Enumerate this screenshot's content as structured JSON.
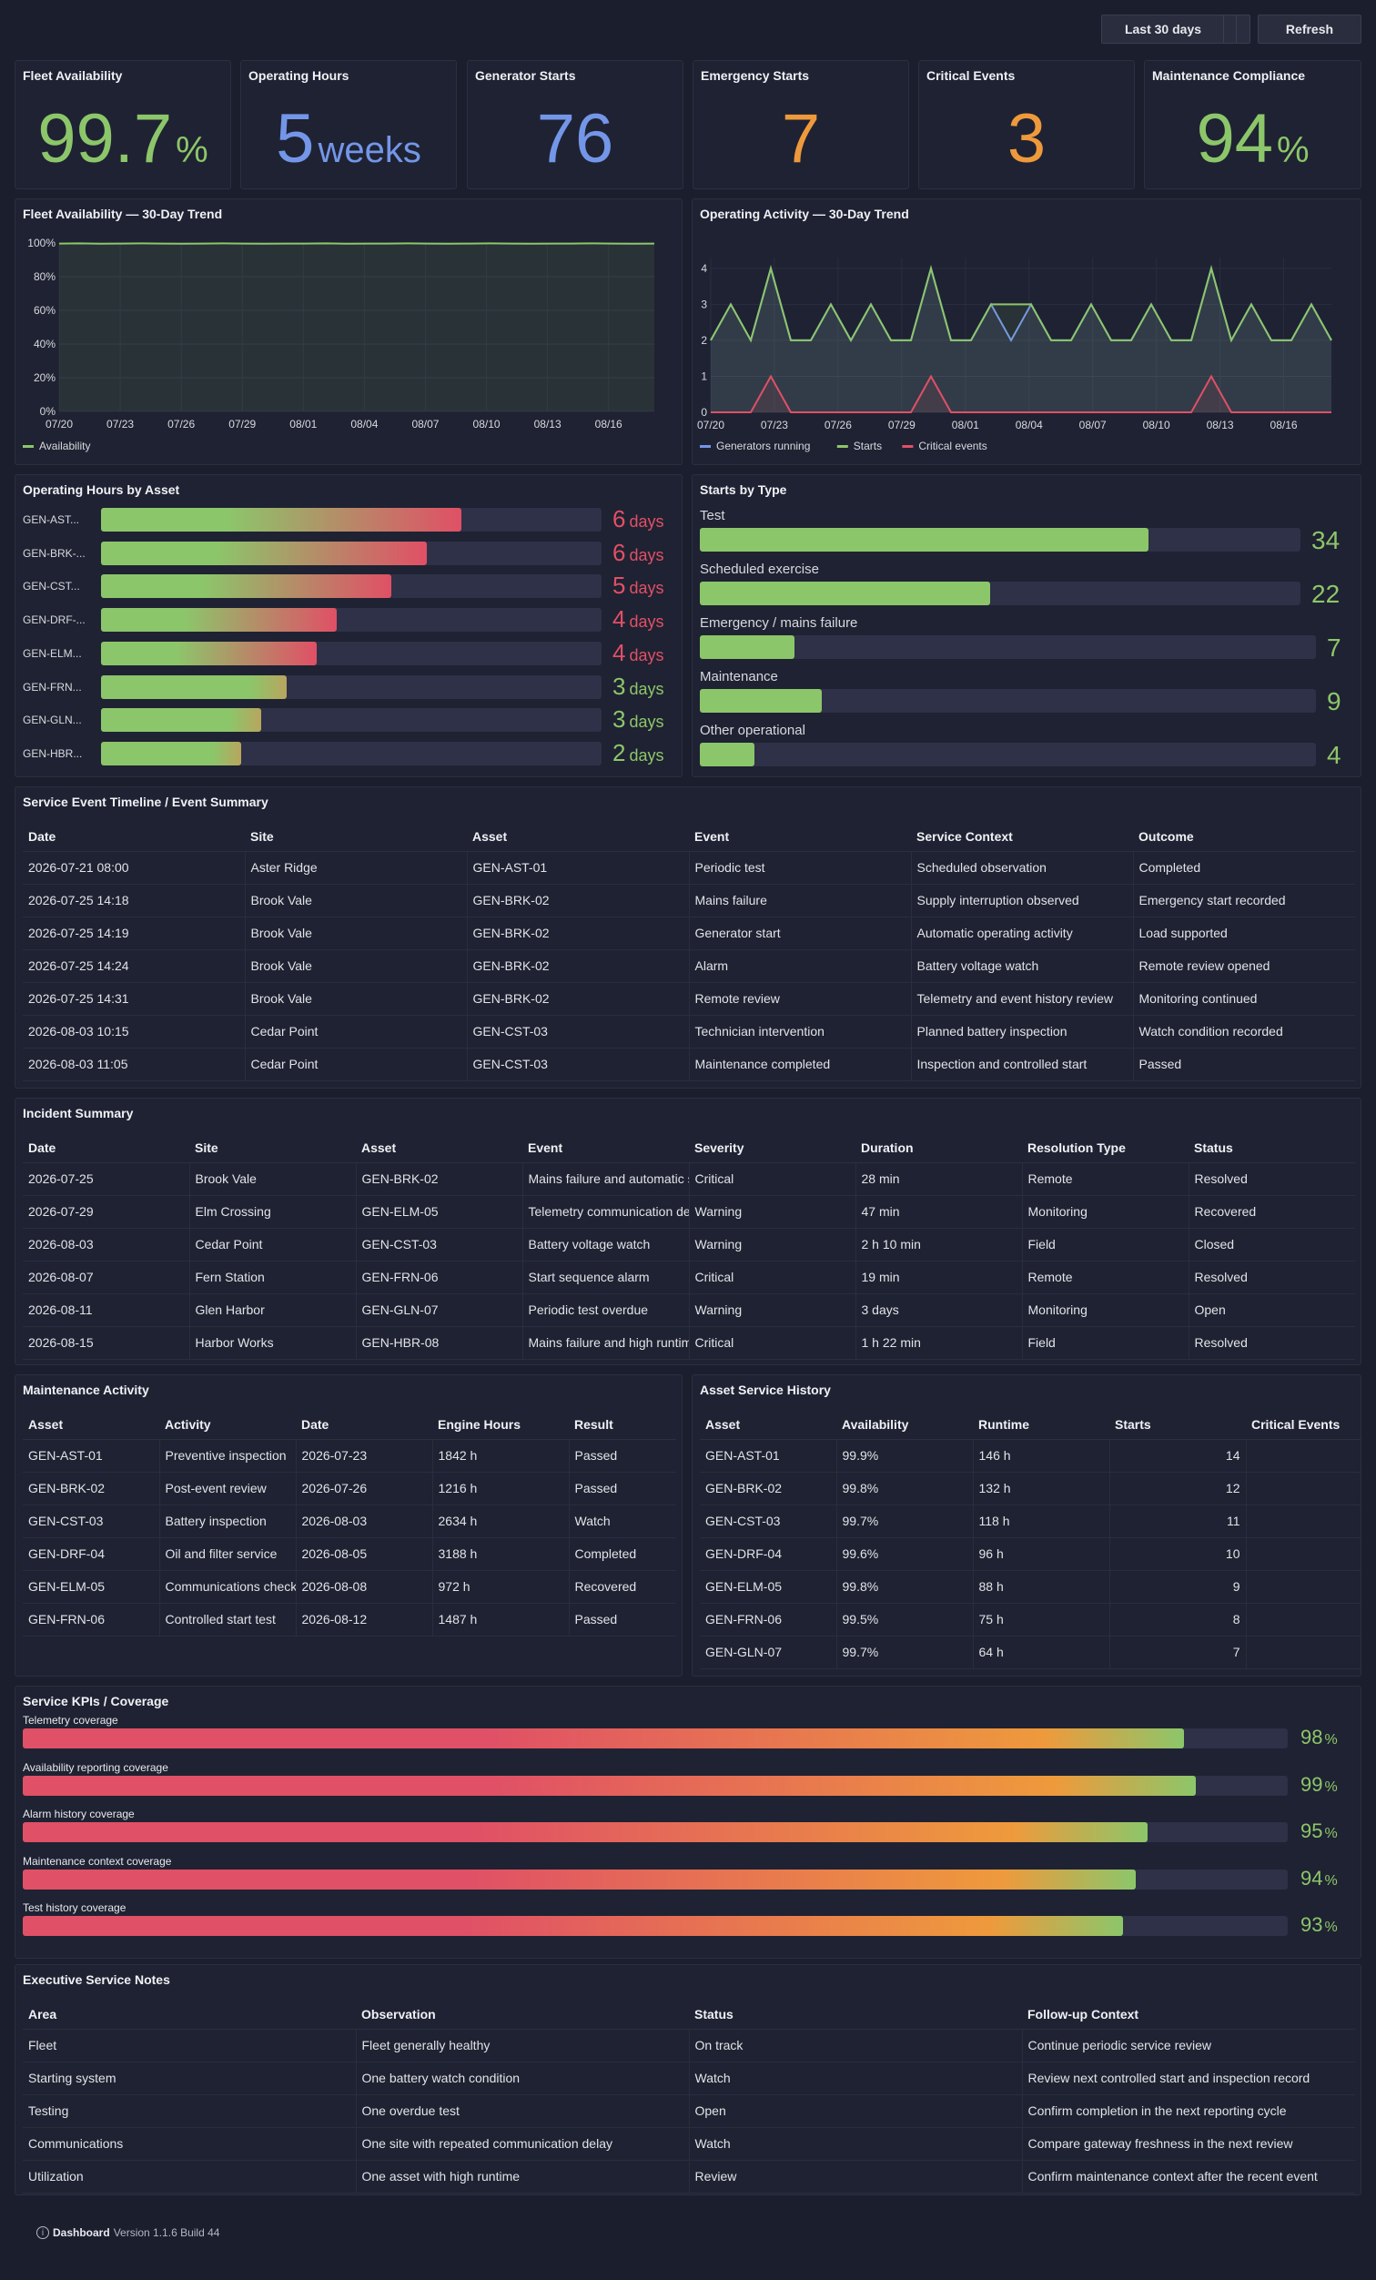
{
  "toolbar": {
    "range_label": "Last 30 days",
    "refresh_label": "Refresh"
  },
  "stats": [
    {
      "title": "Fleet Availability",
      "value": "99.7",
      "unit": "%",
      "color": "#8cc66a"
    },
    {
      "title": "Operating Hours",
      "value": "5",
      "unit": "weeks",
      "color": "#7396e8"
    },
    {
      "title": "Generator Starts",
      "value": "76",
      "unit": "",
      "color": "#7396e8"
    },
    {
      "title": "Emergency Starts",
      "value": "7",
      "unit": "",
      "color": "#ee9a3c"
    },
    {
      "title": "Critical Events",
      "value": "3",
      "unit": "",
      "color": "#ee9a3c"
    },
    {
      "title": "Maintenance Compliance",
      "value": "94",
      "unit": "%",
      "color": "#8cc66a"
    }
  ],
  "chart_data": [
    {
      "type": "area",
      "title": "Fleet Availability — 30-Day Trend",
      "x_ticks": [
        "07/20",
        "07/23",
        "07/26",
        "07/29",
        "08/01",
        "08/04",
        "08/07",
        "08/10",
        "08/13",
        "08/16"
      ],
      "y_ticks": [
        "0%",
        "20%",
        "40%",
        "60%",
        "80%",
        "100%"
      ],
      "ylim": [
        0,
        100
      ],
      "grid": true,
      "legend": "bottom-left",
      "series": [
        {
          "name": "Availability",
          "color": "#8cc66a",
          "values": [
            99.7,
            99.8,
            99.6,
            99.7,
            99.8,
            99.7,
            99.6,
            99.7,
            99.8,
            99.7,
            99.6,
            99.7,
            99.7,
            99.8,
            99.6,
            99.7,
            99.7,
            99.8,
            99.7,
            99.6,
            99.7,
            99.8,
            99.7,
            99.6,
            99.7,
            99.7,
            99.8,
            99.7,
            99.6,
            99.7
          ]
        }
      ]
    },
    {
      "type": "area",
      "title": "Operating Activity — 30-Day Trend",
      "x_ticks": [
        "07/20",
        "07/23",
        "07/26",
        "07/29",
        "08/01",
        "08/04",
        "08/07",
        "08/10",
        "08/13",
        "08/16"
      ],
      "y_ticks": [
        "0",
        "1",
        "2",
        "3",
        "4"
      ],
      "ylim": [
        0,
        4.3
      ],
      "grid": true,
      "legend": "bottom-left",
      "series": [
        {
          "name": "Generators running",
          "color": "#7396e8",
          "values": [
            2,
            3,
            2,
            4,
            2,
            2,
            3,
            2,
            3,
            2,
            2,
            4,
            2,
            2,
            3,
            2,
            3,
            2,
            2,
            3,
            2,
            2,
            3,
            2,
            2,
            4,
            2,
            3,
            2,
            2,
            3,
            2
          ]
        },
        {
          "name": "Starts",
          "color": "#8cc66a",
          "values": [
            2,
            3,
            2,
            4,
            2,
            2,
            3,
            2,
            3,
            2,
            2,
            4,
            2,
            2,
            3,
            3,
            3,
            2,
            2,
            3,
            2,
            2,
            3,
            2,
            2,
            4,
            2,
            3,
            2,
            2,
            3,
            2
          ]
        },
        {
          "name": "Critical events",
          "color": "#e05066",
          "values": [
            0,
            0,
            0,
            1,
            0,
            0,
            0,
            0,
            0,
            0,
            0,
            1,
            0,
            0,
            0,
            0,
            0,
            0,
            0,
            0,
            0,
            0,
            0,
            0,
            0,
            1,
            0,
            0,
            0,
            0,
            0,
            0
          ]
        }
      ]
    },
    {
      "type": "bar",
      "title": "Operating Hours by Asset",
      "categories": [
        "GEN-AST...",
        "GEN-BRK-...",
        "GEN-CST...",
        "GEN-DRF-...",
        "GEN-ELM...",
        "GEN-FRN...",
        "GEN-GLN...",
        "GEN-HBR..."
      ],
      "values": [
        6,
        6,
        5,
        4,
        4,
        3,
        3,
        2
      ],
      "unit": "days",
      "fill_fraction": [
        0.72,
        0.65,
        0.58,
        0.47,
        0.43,
        0.37,
        0.32,
        0.28
      ]
    },
    {
      "type": "bar",
      "title": "Starts by Type",
      "categories": [
        "Test",
        "Scheduled exercise",
        "Emergency / mains failure",
        "Maintenance",
        "Other operational"
      ],
      "values": [
        34,
        22,
        7,
        9,
        4
      ],
      "xlim": [
        0,
        45.5
      ]
    }
  ],
  "timeline": {
    "title": "Service Event Timeline / Event Summary",
    "columns": [
      "Date",
      "Site",
      "Asset",
      "Event",
      "Service Context",
      "Outcome"
    ],
    "rows": [
      [
        "2026-07-21 08:00",
        "Aster Ridge",
        "GEN-AST-01",
        "Periodic test",
        "Scheduled observation",
        "Completed"
      ],
      [
        "2026-07-25 14:18",
        "Brook Vale",
        "GEN-BRK-02",
        "Mains failure",
        "Supply interruption observed",
        "Emergency start recorded"
      ],
      [
        "2026-07-25 14:19",
        "Brook Vale",
        "GEN-BRK-02",
        "Generator start",
        "Automatic operating activity",
        "Load supported"
      ],
      [
        "2026-07-25 14:24",
        "Brook Vale",
        "GEN-BRK-02",
        "Alarm",
        "Battery voltage watch",
        "Remote review opened"
      ],
      [
        "2026-07-25 14:31",
        "Brook Vale",
        "GEN-BRK-02",
        "Remote review",
        "Telemetry and event history review",
        "Monitoring continued"
      ],
      [
        "2026-08-03 10:15",
        "Cedar Point",
        "GEN-CST-03",
        "Technician intervention",
        "Planned battery inspection",
        "Watch condition recorded"
      ],
      [
        "2026-08-03 11:05",
        "Cedar Point",
        "GEN-CST-03",
        "Maintenance completed",
        "Inspection and controlled start",
        "Passed"
      ]
    ]
  },
  "incidents": {
    "title": "Incident Summary",
    "columns": [
      "Date",
      "Site",
      "Asset",
      "Event",
      "Severity",
      "Duration",
      "Resolution Type",
      "Status"
    ],
    "rows": [
      [
        "2026-07-25",
        "Brook Vale",
        "GEN-BRK-02",
        "Mains failure and automatic start",
        "Critical",
        "28 min",
        "Remote",
        "Resolved"
      ],
      [
        "2026-07-29",
        "Elm Crossing",
        "GEN-ELM-05",
        "Telemetry communication delay",
        "Warning",
        "47 min",
        "Monitoring",
        "Recovered"
      ],
      [
        "2026-08-03",
        "Cedar Point",
        "GEN-CST-03",
        "Battery voltage watch",
        "Warning",
        "2 h 10 min",
        "Field",
        "Closed"
      ],
      [
        "2026-08-07",
        "Fern Station",
        "GEN-FRN-06",
        "Start sequence alarm",
        "Critical",
        "19 min",
        "Remote",
        "Resolved"
      ],
      [
        "2026-08-11",
        "Glen Harbor",
        "GEN-GLN-07",
        "Periodic test overdue",
        "Warning",
        "3 days",
        "Monitoring",
        "Open"
      ],
      [
        "2026-08-15",
        "Harbor Works",
        "GEN-HBR-08",
        "Mains failure and high runtime",
        "Critical",
        "1 h 22 min",
        "Field",
        "Resolved"
      ]
    ]
  },
  "maintenance": {
    "title": "Maintenance Activity",
    "columns": [
      "Asset",
      "Activity",
      "Date",
      "Engine Hours",
      "Result"
    ],
    "rows": [
      [
        "GEN-AST-01",
        "Preventive inspection",
        "2026-07-23",
        "1842 h",
        "Passed"
      ],
      [
        "GEN-BRK-02",
        "Post-event review",
        "2026-07-26",
        "1216 h",
        "Passed"
      ],
      [
        "GEN-CST-03",
        "Battery inspection",
        "2026-08-03",
        "2634 h",
        "Watch"
      ],
      [
        "GEN-DRF-04",
        "Oil and filter service",
        "2026-08-05",
        "3188 h",
        "Completed"
      ],
      [
        "GEN-ELM-05",
        "Communications check",
        "2026-08-08",
        "972 h",
        "Recovered"
      ],
      [
        "GEN-FRN-06",
        "Controlled start test",
        "2026-08-12",
        "1487 h",
        "Passed"
      ]
    ]
  },
  "history": {
    "title": "Asset Service History",
    "columns": [
      "Asset",
      "Availability",
      "Runtime",
      "Starts",
      "Critical Events"
    ],
    "rows": [
      [
        "GEN-AST-01",
        "99.9%",
        "146 h",
        "14",
        ""
      ],
      [
        "GEN-BRK-02",
        "99.8%",
        "132 h",
        "12",
        ""
      ],
      [
        "GEN-CST-03",
        "99.7%",
        "118 h",
        "11",
        ""
      ],
      [
        "GEN-DRF-04",
        "99.6%",
        "96 h",
        "10",
        ""
      ],
      [
        "GEN-ELM-05",
        "99.8%",
        "88 h",
        "9",
        ""
      ],
      [
        "GEN-FRN-06",
        "99.5%",
        "75 h",
        "8",
        ""
      ],
      [
        "GEN-GLN-07",
        "99.7%",
        "64 h",
        "7",
        ""
      ]
    ]
  },
  "kpis": {
    "title": "Service KPIs / Coverage",
    "items": [
      {
        "label": "Telemetry coverage",
        "value": "98",
        "unit": "%",
        "fraction": 0.918
      },
      {
        "label": "Availability reporting coverage",
        "value": "99",
        "unit": "%",
        "fraction": 0.927
      },
      {
        "label": "Alarm history coverage",
        "value": "95",
        "unit": "%",
        "fraction": 0.889
      },
      {
        "label": "Maintenance context coverage",
        "value": "94",
        "unit": "%",
        "fraction": 0.88
      },
      {
        "label": "Test history coverage",
        "value": "93",
        "unit": "%",
        "fraction": 0.87
      }
    ]
  },
  "notes": {
    "title": "Executive Service Notes",
    "columns": [
      "Area",
      "Observation",
      "Status",
      "Follow-up Context"
    ],
    "rows": [
      [
        "Fleet",
        "Fleet generally healthy",
        "On track",
        "Continue periodic service review"
      ],
      [
        "Starting system",
        "One battery watch condition",
        "Watch",
        "Review next controlled start and inspection record"
      ],
      [
        "Testing",
        "One overdue test",
        "Open",
        "Confirm completion in the next reporting cycle"
      ],
      [
        "Communications",
        "One site with repeated communication delay",
        "Watch",
        "Compare gateway freshness in the next review"
      ],
      [
        "Utilization",
        "One asset with high runtime",
        "Review",
        "Confirm maintenance context after the recent event"
      ]
    ]
  },
  "footer": {
    "app_name": "Dashboard",
    "version": "Version 1.1.6 Build 44"
  },
  "colors": {
    "green": "#8cc66a",
    "blue": "#7396e8",
    "orange": "#ee9a3c",
    "red": "#e05066",
    "panel": "#1f2232",
    "background": "#1b1e2d"
  }
}
